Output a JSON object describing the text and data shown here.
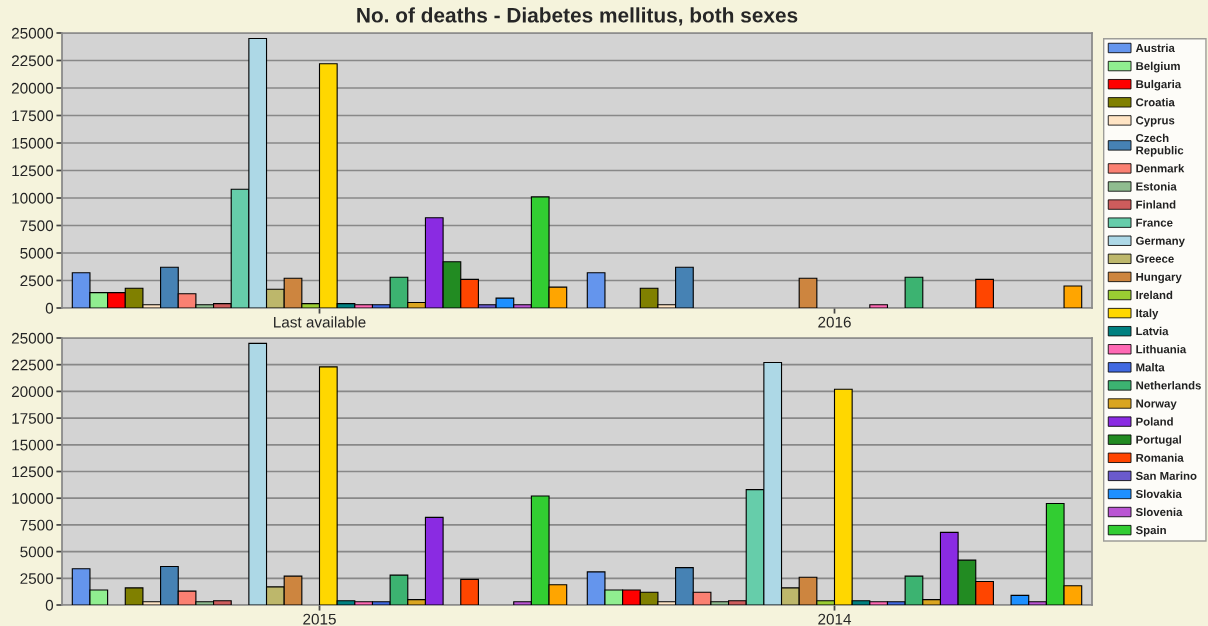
{
  "chart_data": [
    {
      "type": "bar",
      "title": "No. of deaths - Diabetes mellitus, both sexes",
      "categories": [
        "Last available",
        "2016"
      ],
      "ylim": [
        0,
        25000
      ],
      "yticks": [
        0,
        2500,
        5000,
        7500,
        10000,
        12500,
        15000,
        17500,
        20000,
        22500,
        25000
      ],
      "grid": "y",
      "legend": "right",
      "series": [
        {
          "name": "Austria",
          "color": "#6495ed",
          "values": [
            3200,
            3200
          ]
        },
        {
          "name": "Belgium",
          "color": "#90ee90",
          "values": [
            1400,
            null
          ]
        },
        {
          "name": "Bulgaria",
          "color": "#ff0000",
          "values": [
            1400,
            null
          ]
        },
        {
          "name": "Croatia",
          "color": "#808000",
          "values": [
            1800,
            1800
          ]
        },
        {
          "name": "Cyprus",
          "color": "#ffe4c4",
          "values": [
            300,
            300
          ]
        },
        {
          "name": "Czech Republic",
          "color": "#4682b4",
          "values": [
            3700,
            3700
          ]
        },
        {
          "name": "Denmark",
          "color": "#fa8072",
          "values": [
            1300,
            null
          ]
        },
        {
          "name": "Estonia",
          "color": "#8fbc8f",
          "values": [
            300,
            null
          ]
        },
        {
          "name": "Finland",
          "color": "#cd5c5c",
          "values": [
            400,
            null
          ]
        },
        {
          "name": "France",
          "color": "#66cdaa",
          "values": [
            10800,
            null
          ]
        },
        {
          "name": "Germany",
          "color": "#add8e6",
          "values": [
            24500,
            null
          ]
        },
        {
          "name": "Greece",
          "color": "#bdb76b",
          "values": [
            1700,
            null
          ]
        },
        {
          "name": "Hungary",
          "color": "#cd853f",
          "values": [
            2700,
            2700
          ]
        },
        {
          "name": "Ireland",
          "color": "#9acd32",
          "values": [
            400,
            null
          ]
        },
        {
          "name": "Italy",
          "color": "#ffd700",
          "values": [
            22200,
            null
          ]
        },
        {
          "name": "Latvia",
          "color": "#008080",
          "values": [
            400,
            null
          ]
        },
        {
          "name": "Lithuania",
          "color": "#ff69b4",
          "values": [
            300,
            300
          ]
        },
        {
          "name": "Malta",
          "color": "#4169e1",
          "values": [
            300,
            null
          ]
        },
        {
          "name": "Netherlands",
          "color": "#3cb371",
          "values": [
            2800,
            2800
          ]
        },
        {
          "name": "Norway",
          "color": "#daa520",
          "values": [
            500,
            null
          ]
        },
        {
          "name": "Poland",
          "color": "#8a2be2",
          "values": [
            8200,
            null
          ]
        },
        {
          "name": "Portugal",
          "color": "#228b22",
          "values": [
            4200,
            null
          ]
        },
        {
          "name": "Romania",
          "color": "#ff4500",
          "values": [
            2600,
            2600
          ]
        },
        {
          "name": "San Marino",
          "color": "#6a5acd",
          "values": [
            300,
            null
          ]
        },
        {
          "name": "Slovakia",
          "color": "#1e90ff",
          "values": [
            900,
            null
          ]
        },
        {
          "name": "Slovenia",
          "color": "#ba55d3",
          "values": [
            300,
            null
          ]
        },
        {
          "name": "Spain",
          "color": "#32cd32",
          "values": [
            10100,
            null
          ]
        },
        {
          "color": "#ffa500",
          "values": [
            1900,
            2000
          ]
        }
      ]
    },
    {
      "type": "bar",
      "categories": [
        "2015",
        "2014"
      ],
      "ylim": [
        0,
        25000
      ],
      "yticks": [
        0,
        2500,
        5000,
        7500,
        10000,
        12500,
        15000,
        17500,
        20000,
        22500,
        25000
      ],
      "grid": "y",
      "series": [
        {
          "color": "#6495ed",
          "values": [
            3400,
            3100
          ]
        },
        {
          "color": "#90ee90",
          "values": [
            1400,
            1400
          ]
        },
        {
          "color": "#ff0000",
          "values": [
            null,
            1400
          ]
        },
        {
          "color": "#808000",
          "values": [
            1600,
            1200
          ]
        },
        {
          "color": "#ffe4c4",
          "values": [
            300,
            300
          ]
        },
        {
          "color": "#4682b4",
          "values": [
            3600,
            3500
          ]
        },
        {
          "color": "#fa8072",
          "values": [
            1300,
            1200
          ]
        },
        {
          "color": "#8fbc8f",
          "values": [
            300,
            300
          ]
        },
        {
          "color": "#cd5c5c",
          "values": [
            400,
            400
          ]
        },
        {
          "color": "#66cdaa",
          "values": [
            null,
            10800
          ]
        },
        {
          "color": "#add8e6",
          "values": [
            24500,
            22700
          ]
        },
        {
          "color": "#bdb76b",
          "values": [
            1700,
            1600
          ]
        },
        {
          "color": "#cd853f",
          "values": [
            2700,
            2600
          ]
        },
        {
          "color": "#9acd32",
          "values": [
            null,
            400
          ]
        },
        {
          "color": "#ffd700",
          "values": [
            22300,
            20200
          ]
        },
        {
          "color": "#008080",
          "values": [
            400,
            400
          ]
        },
        {
          "color": "#ff69b4",
          "values": [
            300,
            300
          ]
        },
        {
          "color": "#4169e1",
          "values": [
            300,
            300
          ]
        },
        {
          "color": "#3cb371",
          "values": [
            2800,
            2700
          ]
        },
        {
          "color": "#daa520",
          "values": [
            500,
            500
          ]
        },
        {
          "color": "#8a2be2",
          "values": [
            8200,
            6800
          ]
        },
        {
          "color": "#228b22",
          "values": [
            null,
            4200
          ]
        },
        {
          "color": "#ff4500",
          "values": [
            2400,
            2200
          ]
        },
        {
          "color": "#6a5acd",
          "values": [
            null,
            null
          ]
        },
        {
          "color": "#1e90ff",
          "values": [
            null,
            900
          ]
        },
        {
          "color": "#ba55d3",
          "values": [
            300,
            300
          ]
        },
        {
          "color": "#32cd32",
          "values": [
            10200,
            9500
          ]
        },
        {
          "color": "#ffa500",
          "values": [
            1900,
            1800
          ]
        }
      ]
    }
  ]
}
